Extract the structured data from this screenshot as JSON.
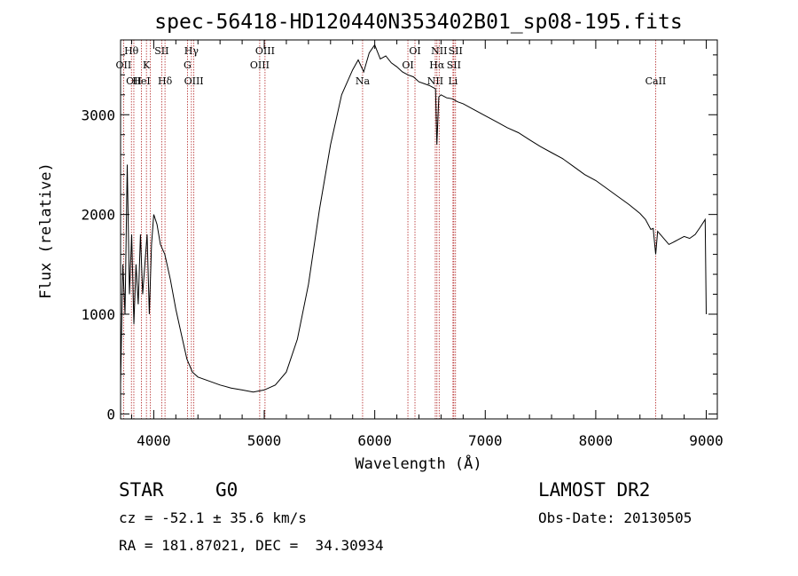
{
  "chart_data": {
    "type": "line",
    "title": "spec-56418-HD120440N353402B01_sp08-195.fits",
    "xlabel": "Wavelength (Å)",
    "ylabel": "Flux (relative)",
    "xlim": [
      3700,
      9100
    ],
    "ylim": [
      -50,
      3750
    ],
    "x_ticks": [
      "4000",
      "5000",
      "6000",
      "7000",
      "8000",
      "9000"
    ],
    "x_tick_values": [
      4000,
      5000,
      6000,
      7000,
      8000,
      9000
    ],
    "y_ticks": [
      "0",
      "1000",
      "2000",
      "3000"
    ],
    "y_tick_values": [
      0,
      1000,
      2000,
      3000
    ],
    "grid": false,
    "series": [
      {
        "x": [
          3700,
          3720,
          3740,
          3760,
          3780,
          3800,
          3820,
          3840,
          3860,
          3880,
          3900,
          3920,
          3940,
          3960,
          3980,
          4000,
          4030,
          4060,
          4100,
          4150,
          4200,
          4250,
          4300,
          4350,
          4400,
          4500,
          4600,
          4700,
          4800,
          4900,
          5000,
          5100,
          5200,
          5300,
          5400,
          5500,
          5600,
          5700,
          5800,
          5850,
          5900,
          5950,
          6000,
          6050,
          6100,
          6150,
          6200,
          6250,
          6300,
          6350,
          6400,
          6450,
          6500,
          6550,
          6562,
          6580,
          6600,
          6650,
          6700,
          6750,
          6800,
          6900,
          7000,
          7100,
          7200,
          7300,
          7400,
          7500,
          7600,
          7700,
          7800,
          7900,
          8000,
          8100,
          8200,
          8300,
          8400,
          8450,
          8498,
          8520,
          8542,
          8560,
          8600,
          8662,
          8700,
          8750,
          8800,
          8850,
          8900,
          8950,
          8990,
          9000
        ],
        "y": [
          300,
          1500,
          1000,
          2500,
          1200,
          1800,
          900,
          1500,
          1100,
          1800,
          1200,
          1500,
          1800,
          1000,
          1700,
          2000,
          1900,
          1700,
          1600,
          1350,
          1050,
          800,
          550,
          420,
          370,
          330,
          290,
          260,
          240,
          220,
          240,
          290,
          420,
          750,
          1300,
          2050,
          2700,
          3200,
          3450,
          3550,
          3430,
          3620,
          3700,
          3560,
          3590,
          3520,
          3480,
          3430,
          3400,
          3380,
          3330,
          3310,
          3290,
          3260,
          2700,
          3180,
          3200,
          3170,
          3160,
          3130,
          3110,
          3050,
          2990,
          2930,
          2870,
          2820,
          2750,
          2680,
          2620,
          2560,
          2480,
          2400,
          2340,
          2260,
          2180,
          2100,
          2010,
          1950,
          1850,
          1860,
          1600,
          1830,
          1780,
          1700,
          1720,
          1750,
          1780,
          1760,
          1800,
          1880,
          1950,
          1000
        ]
      }
    ],
    "line_marks": [
      {
        "x": 3727,
        "label": "OII",
        "row": 2
      },
      {
        "x": 3798,
        "label": "Hθ",
        "row": 1
      },
      {
        "x": 3820,
        "label": "OII",
        "row": 3
      },
      {
        "x": 3889,
        "label": "HeI",
        "row": 3
      },
      {
        "x": 3934,
        "label": "K",
        "row": 2
      },
      {
        "x": 3970,
        "label": "",
        "row": 0
      },
      {
        "x": 4072,
        "label": "SII",
        "row": 1
      },
      {
        "x": 4102,
        "label": "Hδ",
        "row": 3
      },
      {
        "x": 4305,
        "label": "G",
        "row": 2
      },
      {
        "x": 4341,
        "label": "Hγ",
        "row": 1
      },
      {
        "x": 4363,
        "label": "OIII",
        "row": 3
      },
      {
        "x": 4959,
        "label": "OIII",
        "row": 2
      },
      {
        "x": 5007,
        "label": "OIII",
        "row": 1
      },
      {
        "x": 5890,
        "label": "Na",
        "row": 3
      },
      {
        "x": 6300,
        "label": "OI",
        "row": 2
      },
      {
        "x": 6364,
        "label": "OI",
        "row": 1
      },
      {
        "x": 6548,
        "label": "NII",
        "row": 3
      },
      {
        "x": 6563,
        "label": "Hα",
        "row": 2
      },
      {
        "x": 6583,
        "label": "NII",
        "row": 1
      },
      {
        "x": 6708,
        "label": "Li",
        "row": 3
      },
      {
        "x": 6716,
        "label": "SII",
        "row": 2
      },
      {
        "x": 6731,
        "label": "SII",
        "row": 1
      },
      {
        "x": 8542,
        "label": "CaII",
        "row": 3
      }
    ]
  },
  "info": {
    "class_label": "STAR",
    "subclass_label": "G0",
    "survey": "LAMOST DR2",
    "redshift": "cz = -52.1 ± 35.6 km/s",
    "obs_date": "Obs-Date: 20130505",
    "coords": "RA = 181.87021, DEC =  34.30934"
  },
  "colors": {
    "line": "#000000",
    "marker": "#b22222"
  }
}
